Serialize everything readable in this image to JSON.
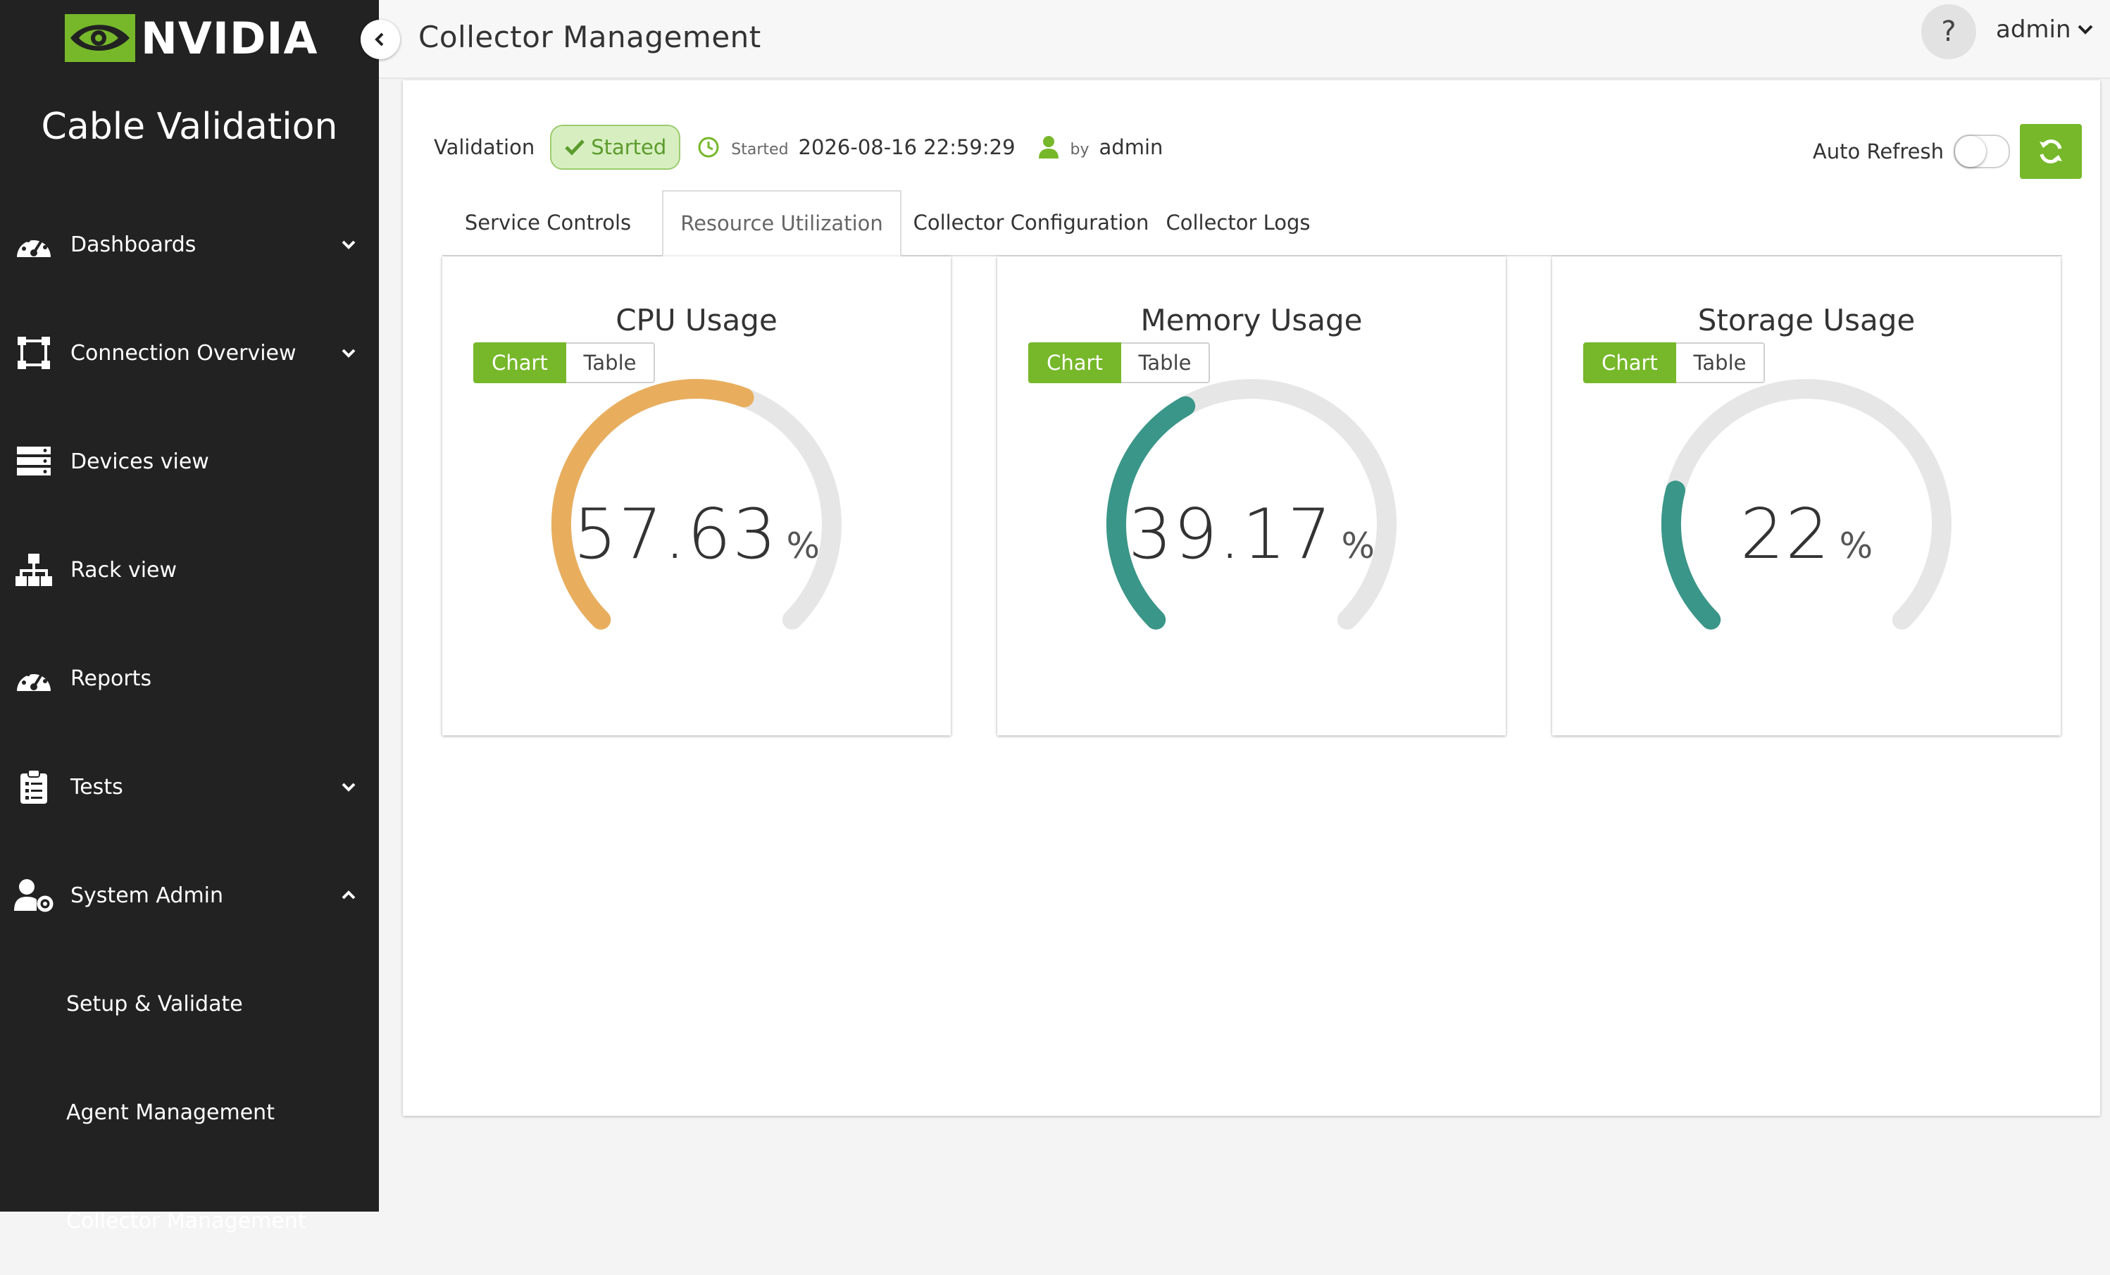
{
  "brand": {
    "logo_text": "NVIDIA",
    "app_title": "Cable Validation",
    "accent": "#76b82a"
  },
  "sidebar": {
    "items": [
      {
        "label": "Dashboards",
        "icon": "dashboard-icon",
        "expandable": true,
        "expanded": false
      },
      {
        "label": "Connection Overview",
        "icon": "connection-icon",
        "expandable": true,
        "expanded": false
      },
      {
        "label": "Devices view",
        "icon": "devices-icon",
        "expandable": false
      },
      {
        "label": "Rack view",
        "icon": "rack-icon",
        "expandable": false
      },
      {
        "label": "Reports",
        "icon": "reports-icon",
        "expandable": false
      },
      {
        "label": "Tests",
        "icon": "clipboard-icon",
        "expandable": true,
        "expanded": false
      },
      {
        "label": "System Admin",
        "icon": "user-gear-icon",
        "expandable": true,
        "expanded": true
      }
    ],
    "subitems": [
      {
        "label": "Setup & Validate"
      },
      {
        "label": "Agent Management"
      },
      {
        "label": "Collector Management"
      }
    ]
  },
  "header": {
    "title": "Collector Management",
    "help": "?",
    "user": "admin"
  },
  "status": {
    "validation_label": "Validation",
    "state": "Started",
    "started_label": "Started",
    "started_at": "2026-08-16 22:59:29",
    "by_label": "by",
    "by_user": "admin",
    "auto_refresh_label": "Auto Refresh",
    "auto_refresh_on": false
  },
  "tabs": [
    {
      "label": "Service Controls",
      "active": false
    },
    {
      "label": "Resource Utilization",
      "active": true
    },
    {
      "label": "Collector Configuration",
      "active": false
    },
    {
      "label": "Collector Logs",
      "active": false
    }
  ],
  "gauges": [
    {
      "title": "CPU Usage",
      "value": "57.63",
      "percent": 57.63,
      "unit": "%",
      "color": "#e8ae5e",
      "view_chart": "Chart",
      "view_table": "Table"
    },
    {
      "title": "Memory Usage",
      "value": "39.17",
      "percent": 39.17,
      "unit": "%",
      "color": "#3a9688",
      "view_chart": "Chart",
      "view_table": "Table"
    },
    {
      "title": "Storage Usage",
      "value": "22",
      "percent": 22,
      "unit": "%",
      "color": "#3a9688",
      "view_chart": "Chart",
      "view_table": "Table"
    }
  ],
  "colors": {
    "gauge_track": "#e6e6e6",
    "sidebar_bg": "#222222"
  }
}
